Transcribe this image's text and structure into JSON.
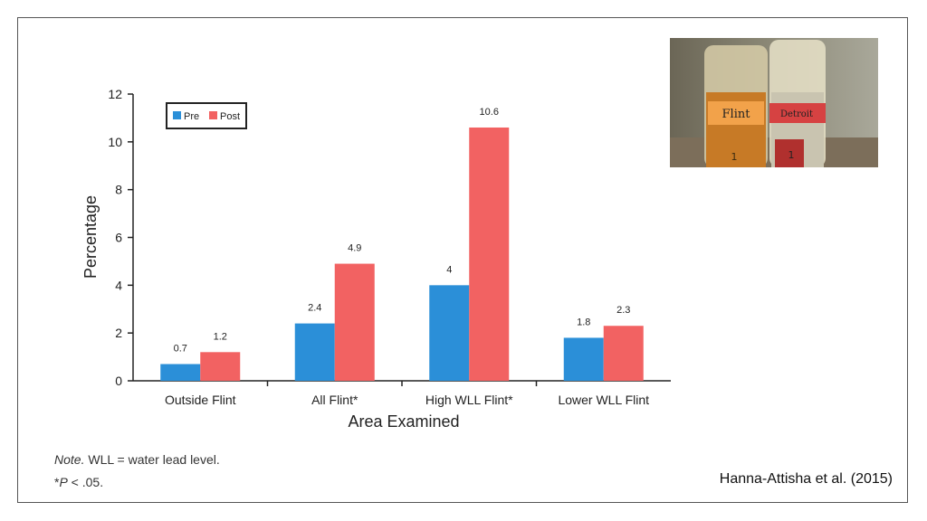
{
  "slide": {
    "citation": "Hanna-Attisha et al. (2015)",
    "note_line1_italic": "Note.",
    "note_line1_rest": " WLL = water lead level.",
    "note_line2_prefix": "*",
    "note_line2_italic": "P",
    "note_line2_rest": " < .05."
  },
  "photo": {
    "left_label": "Flint",
    "right_label": "Detroit",
    "left_number": "1",
    "right_number": "1"
  },
  "colors": {
    "pre": "#2b8fd8",
    "post": "#f26262"
  },
  "chart_data": {
    "type": "bar",
    "categories": [
      "Outside Flint",
      "All Flint*",
      "High WLL Flint*",
      "Lower WLL Flint"
    ],
    "series": [
      {
        "name": "Pre",
        "values": [
          0.7,
          2.4,
          4,
          1.8
        ],
        "labels": [
          "0.7",
          "2.4",
          "4",
          "1.8"
        ]
      },
      {
        "name": "Post",
        "values": [
          1.2,
          4.9,
          10.6,
          2.3
        ],
        "labels": [
          "1.2",
          "4.9",
          "10.6",
          "2.3"
        ]
      }
    ],
    "title": "",
    "xlabel": "Area Examined",
    "ylabel": "Percentage",
    "ylim": [
      0,
      12
    ],
    "yticks": [
      "0",
      "2",
      "4",
      "6",
      "8",
      "10",
      "12"
    ],
    "legend": "top-left",
    "grid": false
  }
}
